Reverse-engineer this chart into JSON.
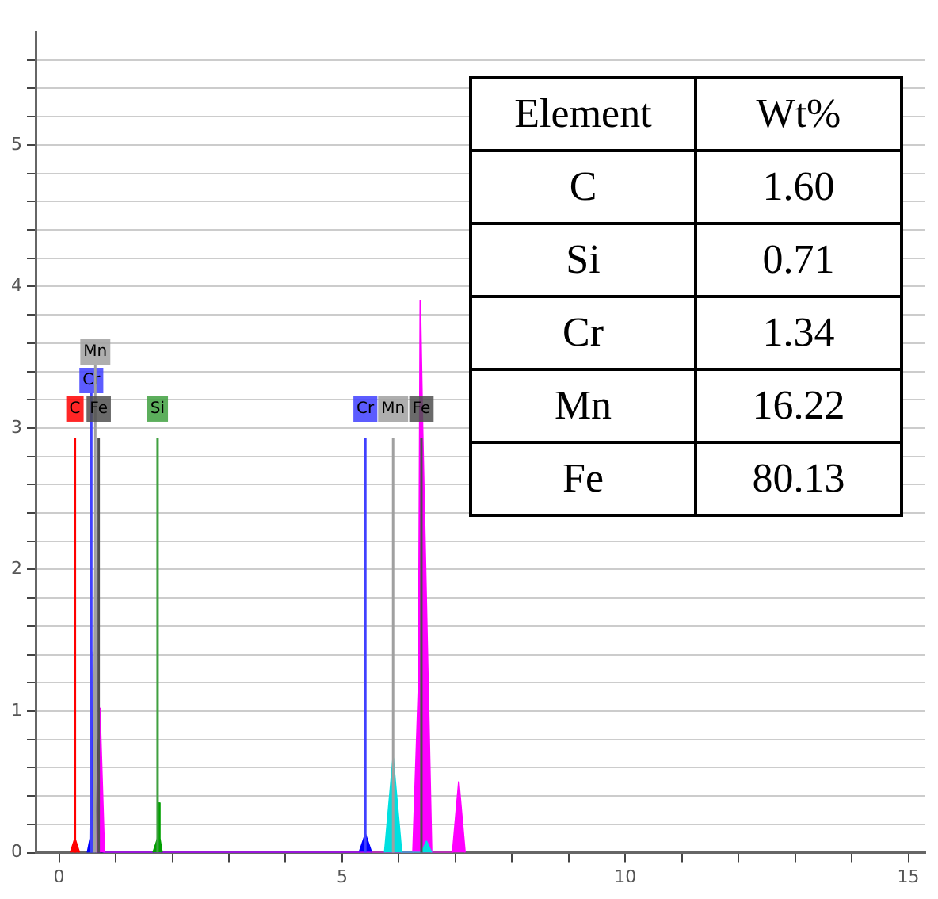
{
  "chart_data": [
    {
      "type": "area",
      "xlim": [
        -0.4,
        15.3
      ],
      "ylim": [
        0,
        5.8
      ],
      "xticks": [
        0,
        {
          "value": 1,
          "label": null
        },
        {
          "value": 2,
          "label": null
        },
        {
          "value": 3,
          "label": null
        },
        {
          "value": 4,
          "label": null
        },
        5,
        {
          "value": 6,
          "label": null
        },
        {
          "value": 7,
          "label": null
        },
        {
          "value": 8,
          "label": null
        },
        {
          "value": 9,
          "label": null
        },
        10,
        {
          "value": 11,
          "label": null
        },
        {
          "value": 12,
          "label": null
        },
        {
          "value": 13,
          "label": null
        },
        {
          "value": 14,
          "label": null
        },
        15
      ],
      "yticks": [
        0,
        {
          "value": 0.2,
          "label": null
        },
        {
          "value": 0.4,
          "label": null
        },
        {
          "value": 0.6,
          "label": null
        },
        {
          "value": 0.8,
          "label": null
        },
        1,
        {
          "value": 1.2,
          "label": null
        },
        {
          "value": 1.4,
          "label": null
        },
        {
          "value": 1.6,
          "label": null
        },
        {
          "value": 1.8,
          "label": null
        },
        2,
        {
          "value": 2.2,
          "label": null
        },
        {
          "value": 2.4,
          "label": null
        },
        {
          "value": 2.6,
          "label": null
        },
        {
          "value": 2.8,
          "label": null
        },
        3,
        {
          "value": 3.2,
          "label": null
        },
        {
          "value": 3.4,
          "label": null
        },
        {
          "value": 3.6,
          "label": null
        },
        {
          "value": 3.8,
          "label": null
        },
        4,
        {
          "value": 4.2,
          "label": null
        },
        {
          "value": 4.4,
          "label": null
        },
        {
          "value": 4.6,
          "label": null
        },
        {
          "value": 4.8,
          "label": null
        },
        5,
        {
          "value": 5.2,
          "label": null
        },
        {
          "value": 5.4,
          "label": null
        },
        {
          "value": 5.6,
          "label": null
        }
      ],
      "grid": "y",
      "legend": false,
      "marker": "none",
      "series": [
        {
          "color": "#ff0000",
          "x": [
            0.2,
            0.28,
            0.36
          ],
          "values": [
            0,
            0.1,
            0
          ]
        },
        {
          "color": "#0000ff",
          "x": [
            0.5,
            0.55,
            0.57,
            0.59,
            0.64,
            5.3,
            5.41,
            5.52
          ],
          "values": [
            0,
            0.1,
            1.42,
            0.1,
            0,
            0,
            0.13,
            0
          ]
        },
        {
          "color": "#a0a0a0",
          "x": [
            0.6,
            0.64,
            0.68
          ],
          "values": [
            0,
            2.3,
            0
          ]
        },
        {
          "color": "#000000",
          "x": [
            0.64,
            0.7,
            0.76
          ],
          "values": [
            0,
            0.8,
            0
          ]
        },
        {
          "color": "#ff00ff",
          "x": [
            0.66,
            0.72,
            0.8,
            6.25,
            6.35,
            6.38,
            6.42,
            6.5,
            6.58,
            6.95,
            7.06,
            7.17
          ],
          "values": [
            0,
            1.02,
            0,
            0,
            1.2,
            3.9,
            3.0,
            1.5,
            0,
            0,
            0.5,
            0
          ]
        },
        {
          "color": "#00a000",
          "x": [
            1.66,
            1.74,
            1.76,
            1.78,
            1.82
          ],
          "values": [
            0,
            0.1,
            0.35,
            0.1,
            0
          ]
        },
        {
          "color": "#00e0e0",
          "x": [
            5.75,
            5.9,
            6.05,
            6.4,
            6.49,
            6.58
          ],
          "values": [
            0,
            0.67,
            0,
            0,
            0.08,
            0
          ]
        }
      ],
      "ref_lines": [
        {
          "axis": "x",
          "value": 0.28,
          "label": "C",
          "color": "#ff0000"
        },
        {
          "axis": "x",
          "value": 0.57,
          "label": "Cr",
          "color": "#4040ff"
        },
        {
          "axis": "x",
          "value": 0.64,
          "label": "Mn",
          "color": "#a0a0a0"
        },
        {
          "axis": "x",
          "value": 0.7,
          "label": "Fe",
          "color": "#505050"
        },
        {
          "axis": "x",
          "value": 1.74,
          "label": "Si",
          "color": "#40a040"
        },
        {
          "axis": "x",
          "value": 5.41,
          "label": "Cr",
          "color": "#4040ff"
        },
        {
          "axis": "x",
          "value": 5.9,
          "label": "Mn",
          "color": "#a0a0a0"
        },
        {
          "axis": "x",
          "value": 6.4,
          "label": "Fe",
          "color": "#505050"
        }
      ]
    },
    {
      "type": "other",
      "xlabel": "Element",
      "ylabel": "Wt%",
      "categories": [
        "C",
        "Si",
        "Cr",
        "Mn",
        "Fe"
      ],
      "value_labels": [
        "1.60",
        "0.71",
        "1.34",
        "16.22",
        "80.13"
      ]
    }
  ]
}
